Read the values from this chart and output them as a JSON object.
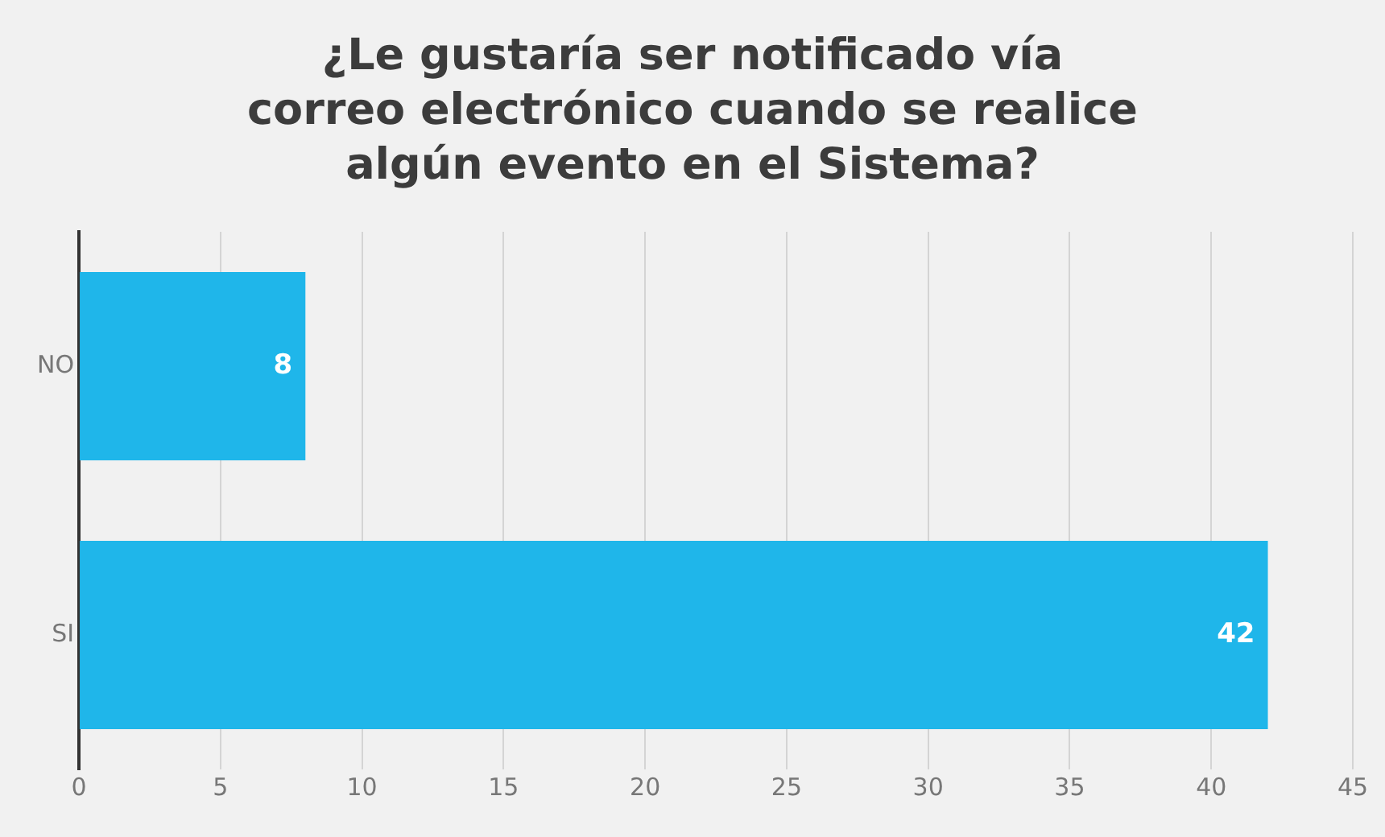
{
  "chart_data": {
    "type": "bar",
    "orientation": "horizontal",
    "title": "¿Le gustaría ser notificado vía correo electrónico cuando se realice algún evento en el Sistema?",
    "categories": [
      "NO",
      "SI"
    ],
    "values": [
      8,
      42
    ],
    "color": "#1fb6ea",
    "xlim": [
      0,
      45
    ],
    "xticks": [
      0,
      5,
      10,
      15,
      20,
      25,
      30,
      35,
      40,
      45
    ],
    "grid": "x",
    "data_labels": true,
    "legend": false
  }
}
